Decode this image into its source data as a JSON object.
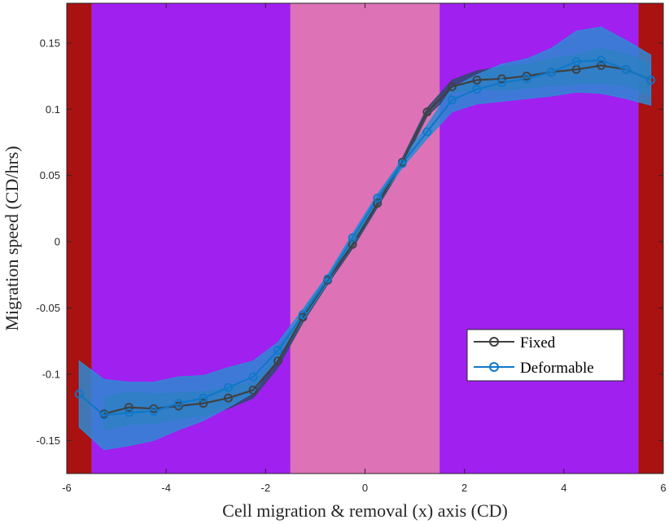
{
  "chart_data": {
    "type": "line",
    "xlabel": "Cell migration & removal (x) axis (CD)",
    "ylabel": "Migration speed (CD/hrs)",
    "xlim": [
      -6,
      6
    ],
    "ylim": [
      -0.175,
      0.18
    ],
    "xticks": [
      -6,
      -4,
      -2,
      0,
      2,
      4,
      6
    ],
    "xtick_labels": [
      "-6",
      "-4",
      "-2",
      "0",
      "2",
      "4",
      "6"
    ],
    "yticks": [
      -0.15,
      -0.1,
      -0.05,
      0,
      0.05,
      0.1,
      0.15
    ],
    "ytick_labels": [
      "-0.15",
      "-0.1",
      "-0.05",
      "0",
      "0.05",
      "0.1",
      "0.15"
    ],
    "grid": false,
    "legend_position": "lower-right",
    "background_bands": [
      {
        "x0": -6,
        "x1": -5.5,
        "color": "#aa1111"
      },
      {
        "x0": -5.5,
        "x1": -1.5,
        "color": "#a020f0"
      },
      {
        "x0": -1.5,
        "x1": 1.5,
        "color": "#dd72b6"
      },
      {
        "x0": 1.5,
        "x1": 5.5,
        "color": "#a020f0"
      },
      {
        "x0": 5.5,
        "x1": 6,
        "color": "#aa1111"
      }
    ],
    "series": [
      {
        "name": "Fixed",
        "color": "#404040",
        "band_color": "#2e4a6e",
        "x": [
          -5.25,
          -4.75,
          -4.25,
          -3.75,
          -3.25,
          -2.75,
          -2.25,
          -1.75,
          -1.25,
          -0.75,
          -0.25,
          0.25,
          0.75,
          1.25,
          1.75,
          2.25,
          2.75,
          3.25,
          3.75,
          4.25,
          4.75,
          5.25,
          5.75
        ],
        "y": [
          -0.13,
          -0.125,
          -0.126,
          -0.124,
          -0.122,
          -0.118,
          -0.112,
          -0.09,
          -0.057,
          -0.029,
          -0.002,
          0.029,
          0.06,
          0.098,
          0.117,
          0.122,
          0.123,
          0.125,
          0.128,
          0.13,
          0.133,
          0.13,
          0.122
        ],
        "lower": [
          -0.142,
          -0.138,
          -0.137,
          -0.134,
          -0.131,
          -0.126,
          -0.118,
          -0.095,
          -0.061,
          -0.032,
          -0.005,
          0.026,
          0.057,
          0.095,
          0.112,
          0.115,
          0.114,
          0.116,
          0.118,
          0.119,
          0.12,
          0.118,
          0.11
        ],
        "upper": [
          -0.118,
          -0.113,
          -0.115,
          -0.114,
          -0.113,
          -0.11,
          -0.106,
          -0.085,
          -0.053,
          -0.026,
          0.001,
          0.032,
          0.063,
          0.101,
          0.122,
          0.129,
          0.132,
          0.134,
          0.138,
          0.141,
          0.146,
          0.142,
          0.134
        ]
      },
      {
        "name": "Deformable",
        "color": "#0f78c8",
        "band_color": "#2e8ad4",
        "x": [
          -5.75,
          -5.25,
          -4.75,
          -4.25,
          -3.75,
          -3.25,
          -2.75,
          -2.25,
          -1.75,
          -1.25,
          -0.75,
          -0.25,
          0.25,
          0.75,
          1.25,
          1.75,
          2.25,
          2.75,
          3.25,
          3.75,
          4.25,
          4.75,
          5.25,
          5.75
        ],
        "y": [
          -0.115,
          -0.131,
          -0.129,
          -0.128,
          -0.122,
          -0.118,
          -0.11,
          -0.102,
          -0.082,
          -0.055,
          -0.028,
          0.003,
          0.033,
          0.059,
          0.083,
          0.107,
          0.115,
          0.12,
          0.123,
          0.128,
          0.136,
          0.137,
          0.13,
          0.122
        ],
        "lower": [
          -0.14,
          -0.157,
          -0.154,
          -0.15,
          -0.142,
          -0.135,
          -0.125,
          -0.114,
          -0.088,
          -0.059,
          -0.031,
          0.0,
          0.03,
          0.056,
          0.078,
          0.098,
          0.104,
          0.106,
          0.108,
          0.11,
          0.113,
          0.112,
          0.108,
          0.103
        ],
        "upper": [
          -0.09,
          -0.104,
          -0.106,
          -0.106,
          -0.102,
          -0.101,
          -0.095,
          -0.09,
          -0.076,
          -0.051,
          -0.025,
          0.006,
          0.036,
          0.062,
          0.088,
          0.116,
          0.126,
          0.134,
          0.138,
          0.146,
          0.159,
          0.162,
          0.152,
          0.141
        ]
      }
    ]
  }
}
